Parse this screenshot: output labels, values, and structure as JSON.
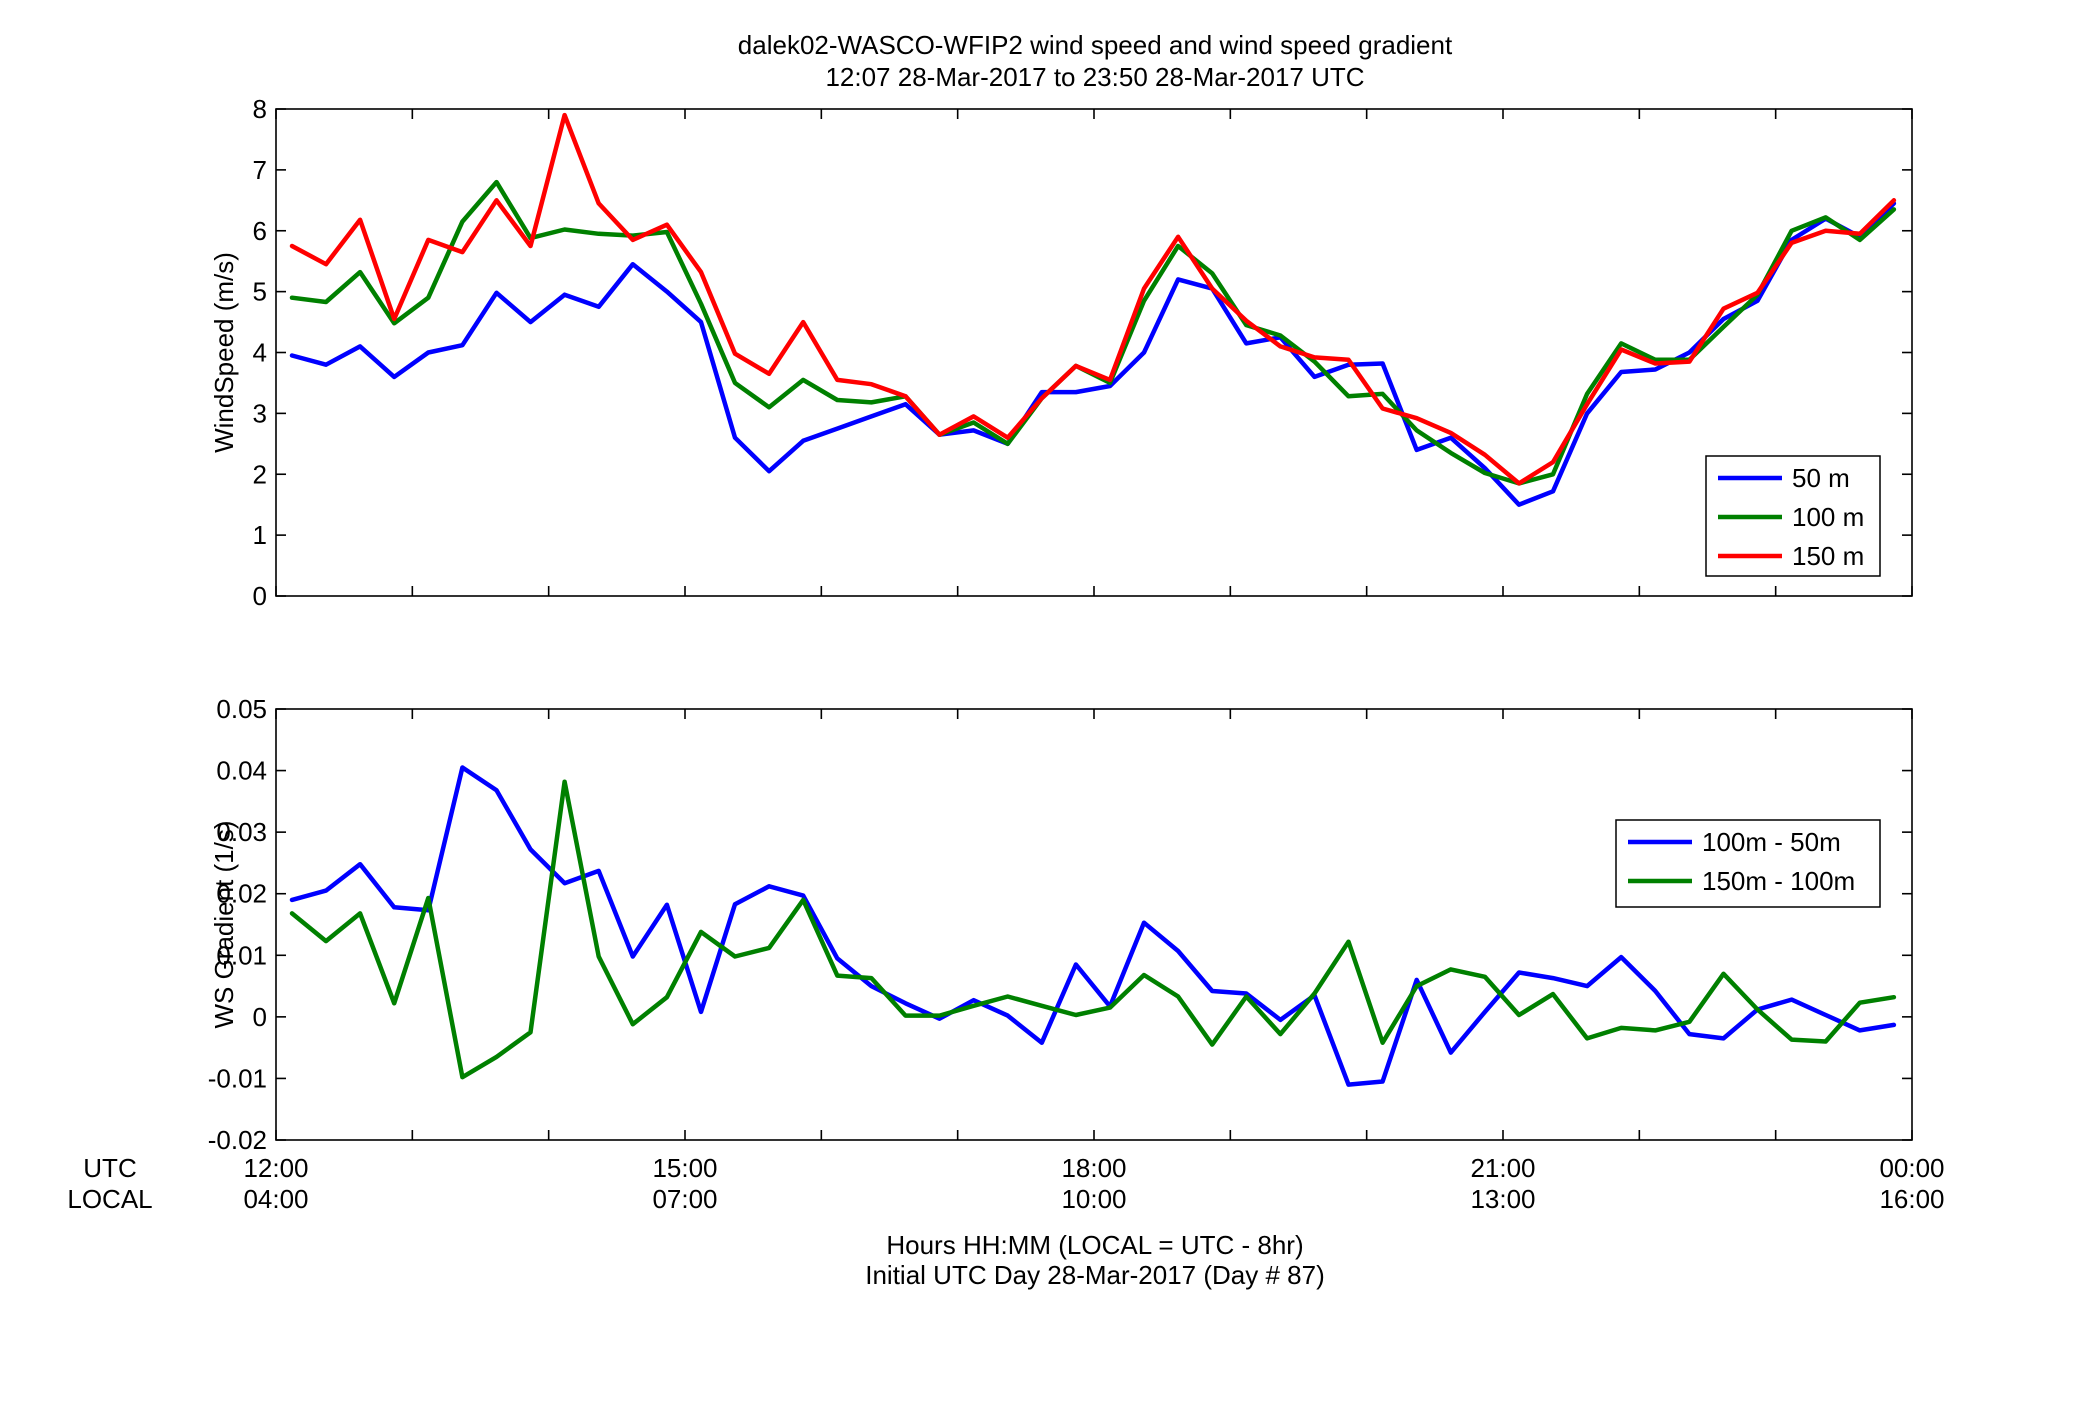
{
  "title_line1": "dalek02-WASCO-WFIP2  wind speed and wind speed gradient",
  "title_line2": "12:07 28-Mar-2017 to 23:50 28-Mar-2017  UTC",
  "xlabel_line1": "Hours HH:MM  (LOCAL = UTC - 8hr)",
  "xlabel_line2": "Initial UTC Day 28-Mar-2017 (Day # 87)",
  "row_label_utc": "UTC",
  "row_label_local": "LOCAL",
  "x_ticks": [
    {
      "hour": 12,
      "utc": "12:00",
      "local": "04:00"
    },
    {
      "hour": 15,
      "utc": "15:00",
      "local": "07:00"
    },
    {
      "hour": 18,
      "utc": "18:00",
      "local": "10:00"
    },
    {
      "hour": 21,
      "utc": "21:00",
      "local": "13:00"
    },
    {
      "hour": 24,
      "utc": "00:00",
      "local": "16:00"
    }
  ],
  "chart_data": [
    {
      "type": "line",
      "ylabel": "WindSpeed (m/s)",
      "xlim": [
        12,
        24
      ],
      "ylim": [
        0,
        8
      ],
      "yticks": [
        0,
        1,
        2,
        3,
        4,
        5,
        6,
        7,
        8
      ],
      "ytick_labels": [
        "0",
        "1",
        "2",
        "3",
        "4",
        "5",
        "6",
        "7",
        "8"
      ],
      "legend_position": "lower-right",
      "x": [
        12.117,
        12.367,
        12.617,
        12.867,
        13.117,
        13.367,
        13.617,
        13.867,
        14.117,
        14.367,
        14.617,
        14.867,
        15.117,
        15.367,
        15.617,
        15.867,
        16.117,
        16.367,
        16.617,
        16.867,
        17.117,
        17.367,
        17.617,
        17.867,
        18.117,
        18.367,
        18.617,
        18.867,
        19.117,
        19.367,
        19.617,
        19.867,
        20.117,
        20.367,
        20.617,
        20.867,
        21.117,
        21.367,
        21.617,
        21.867,
        22.117,
        22.367,
        22.617,
        22.867,
        23.117,
        23.367,
        23.617,
        23.867
      ],
      "series": [
        {
          "name": "50 m",
          "color": "#0000ff",
          "values": [
            3.95,
            3.8,
            4.1,
            3.6,
            4.0,
            4.12,
            4.98,
            4.5,
            4.95,
            4.75,
            5.45,
            5.0,
            4.5,
            2.6,
            2.05,
            2.55,
            2.75,
            2.95,
            3.15,
            2.65,
            2.72,
            2.5,
            3.35,
            3.35,
            3.45,
            4.0,
            5.2,
            5.05,
            4.15,
            4.25,
            3.6,
            3.8,
            3.82,
            2.4,
            2.6,
            2.1,
            1.5,
            1.72,
            3.0,
            3.68,
            3.72,
            4.0,
            4.55,
            4.85,
            5.85,
            6.2,
            5.9,
            6.45
          ]
        },
        {
          "name": "100 m",
          "color": "#008000",
          "values": [
            4.9,
            4.83,
            5.32,
            4.48,
            4.9,
            6.15,
            6.8,
            5.88,
            6.02,
            5.95,
            5.92,
            5.98,
            4.8,
            3.5,
            3.1,
            3.55,
            3.22,
            3.18,
            3.28,
            2.65,
            2.85,
            2.5,
            3.25,
            3.78,
            3.5,
            4.85,
            5.75,
            5.3,
            4.45,
            4.28,
            3.85,
            3.28,
            3.32,
            2.72,
            2.35,
            2.02,
            1.85,
            2.0,
            3.32,
            4.15,
            3.88,
            3.88,
            4.42,
            4.95,
            6.0,
            6.22,
            5.85,
            6.35
          ]
        },
        {
          "name": "150 m",
          "color": "#ff0000",
          "values": [
            5.75,
            5.45,
            6.18,
            4.55,
            5.85,
            5.65,
            6.5,
            5.75,
            7.9,
            6.45,
            5.85,
            6.1,
            5.32,
            3.98,
            3.65,
            4.5,
            3.55,
            3.48,
            3.28,
            2.65,
            2.95,
            2.6,
            3.25,
            3.78,
            3.55,
            5.05,
            5.9,
            5.05,
            4.52,
            4.1,
            3.92,
            3.88,
            3.08,
            2.92,
            2.68,
            2.32,
            1.85,
            2.2,
            3.15,
            4.05,
            3.82,
            3.85,
            4.72,
            4.98,
            5.8,
            6.0,
            5.95,
            6.5
          ]
        }
      ]
    },
    {
      "type": "line",
      "ylabel": "WS Gradient (1/s)",
      "xlim": [
        12,
        24
      ],
      "ylim": [
        -0.02,
        0.05
      ],
      "yticks": [
        -0.02,
        -0.01,
        0,
        0.01,
        0.02,
        0.03,
        0.04,
        0.05
      ],
      "ytick_labels": [
        "-0.02",
        "-0.01",
        "0",
        "0.01",
        "0.02",
        "0.03",
        "0.04",
        "0.05"
      ],
      "legend_position": "right",
      "x": [
        12.117,
        12.367,
        12.617,
        12.867,
        13.117,
        13.367,
        13.617,
        13.867,
        14.117,
        14.367,
        14.617,
        14.867,
        15.117,
        15.367,
        15.617,
        15.867,
        16.117,
        16.367,
        16.617,
        16.867,
        17.117,
        17.367,
        17.617,
        17.867,
        18.117,
        18.367,
        18.617,
        18.867,
        19.117,
        19.367,
        19.617,
        19.867,
        20.117,
        20.367,
        20.617,
        20.867,
        21.117,
        21.367,
        21.617,
        21.867,
        22.117,
        22.367,
        22.617,
        22.867,
        23.117,
        23.367,
        23.617,
        23.867
      ],
      "series": [
        {
          "name": "100m - 50m",
          "color": "#0000ff",
          "values": [
            0.019,
            0.0205,
            0.0248,
            0.0178,
            0.0173,
            0.0405,
            0.0368,
            0.0272,
            0.0217,
            0.0237,
            0.0098,
            0.0182,
            0.0008,
            0.0183,
            0.0212,
            0.0197,
            0.0095,
            0.005,
            0.0022,
            -0.0003,
            0.0027,
            0.0002,
            -0.0042,
            0.0085,
            0.0017,
            0.0153,
            0.0107,
            0.0042,
            0.0038,
            -0.0005,
            0.0035,
            -0.011,
            -0.0105,
            0.006,
            -0.0058,
            0.0008,
            0.0072,
            0.0063,
            0.005,
            0.0097,
            0.0042,
            -0.0028,
            -0.0035,
            0.0012,
            0.0028,
            0.0003,
            -0.0022,
            -0.0013
          ]
        },
        {
          "name": "150m - 100m",
          "color": "#008000",
          "values": [
            0.0168,
            0.0123,
            0.0168,
            0.0022,
            0.0193,
            -0.0098,
            -0.0065,
            -0.0025,
            0.0382,
            0.0098,
            -0.0012,
            0.0032,
            0.0138,
            0.0098,
            0.0112,
            0.019,
            0.0067,
            0.0063,
            0.0002,
            0.0002,
            0.0018,
            0.0033,
            0.0018,
            0.0003,
            0.0015,
            0.0068,
            0.0033,
            -0.0045,
            0.0033,
            -0.0028,
            0.0038,
            0.0122,
            -0.0042,
            0.005,
            0.0077,
            0.0065,
            0.0003,
            0.0037,
            -0.0035,
            -0.0018,
            -0.0022,
            -0.0008,
            0.007,
            0.0012,
            -0.0037,
            -0.004,
            0.0023,
            0.0032
          ]
        }
      ]
    }
  ]
}
